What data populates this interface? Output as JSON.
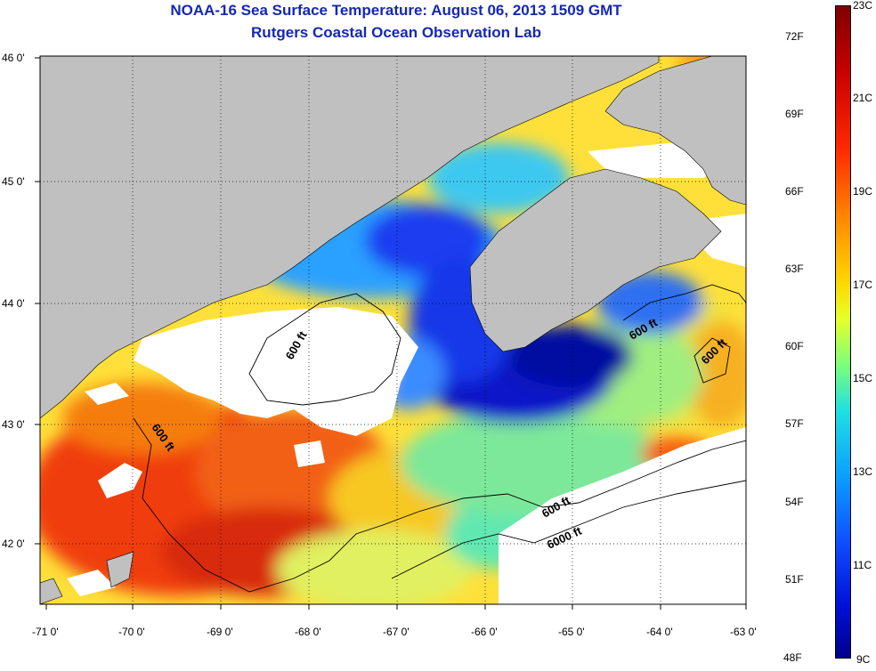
{
  "title_line1": "NOAA-16 Sea Surface Temperature:  August 06, 2013 1509 GMT",
  "title_line2": "Rutgers Coastal Ocean Observation Lab",
  "x_ticks": [
    "-71 0'",
    "-70 0'",
    "-69 0'",
    "-68 0'",
    "-67 0'",
    "-66 0'",
    "-65 0'",
    "-64 0'",
    "-63 0'"
  ],
  "y_ticks": [
    "46 0'",
    "45 0'",
    "44 0'",
    "43 0'",
    "42 0'"
  ],
  "colorbar": {
    "fahrenheit_labels": [
      "72F",
      "69F",
      "66F",
      "63F",
      "60F",
      "57F",
      "54F",
      "51F",
      "48F"
    ],
    "celsius_labels": [
      "23C",
      "21C",
      "19C",
      "17C",
      "15C",
      "13C",
      "11C",
      "9C"
    ]
  },
  "isobath_labels": [
    "600 ft",
    "600 ft",
    "600 ft",
    "600 ft",
    "600 ft",
    "6000 ft"
  ],
  "colors": {
    "title": "#1528b3",
    "land": "#c0c0c0",
    "cloud": "#ffffff"
  }
}
